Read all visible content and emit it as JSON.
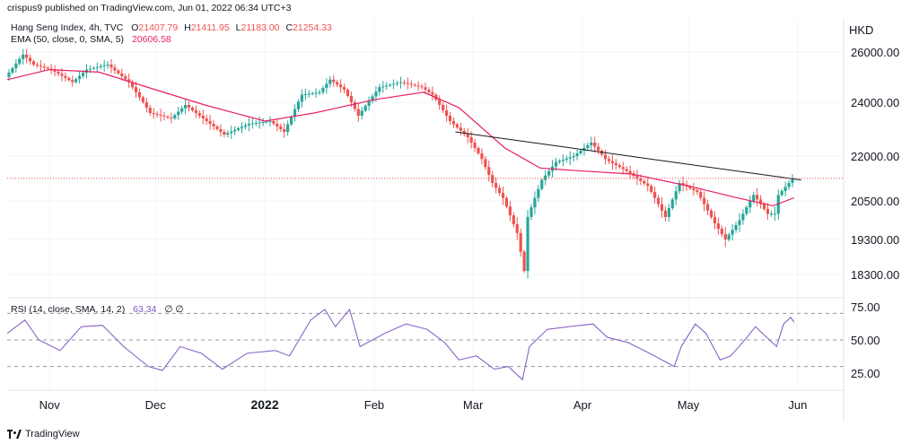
{
  "header": {
    "published_by": "crispus9 published on TradingView.com, Jun 01, 2022 06:34 UTC+3",
    "symbol": "Hang Seng Index, 4h, TVC",
    "ohlc": [
      {
        "key": "O",
        "value": "21407.79"
      },
      {
        "key": "H",
        "value": "21411.95"
      },
      {
        "key": "L",
        "value": "21183.00"
      },
      {
        "key": "C",
        "value": "21254.33"
      }
    ],
    "ema_label": "EMA (50, close, 0, SMA, 5)",
    "ema_value": "20606.58",
    "rsi_label": "RSI (14, close, SMA, 14, 2)",
    "rsi_value": "63.34",
    "rsi_extra": "∅  ∅"
  },
  "currency": "HKD",
  "footer": {
    "brand": "TradingView"
  },
  "colors": {
    "up": "#26a69a",
    "down": "#ef5350",
    "ema": "#e91e63",
    "trendline": "#131722",
    "rsi": "#7e57c2",
    "grid": "#d6dae3",
    "last_price": "#ef5350"
  },
  "chart_data": [
    {
      "type": "candlestick",
      "title": "Hang Seng Index, 4h, TVC",
      "ylabel": "HKD",
      "y_ticks": [
        "26000.00",
        "24000.00",
        "22000.00",
        "20500.00",
        "19300.00",
        "18300.00"
      ],
      "x_ticks": [
        {
          "date": "2021-11-01",
          "label": "Nov"
        },
        {
          "date": "2021-12-01",
          "label": "Dec"
        },
        {
          "date": "2022-01-01",
          "label": "2022"
        },
        {
          "date": "2022-02-01",
          "label": "Feb"
        },
        {
          "date": "2022-03-01",
          "label": "Mar"
        },
        {
          "date": "2022-04-01",
          "label": "Apr"
        },
        {
          "date": "2022-05-01",
          "label": "May"
        },
        {
          "date": "2022-06-01",
          "label": "Jun"
        }
      ],
      "x_range": [
        "2021-10-20",
        "2022-06-14"
      ],
      "last_price": 21254.33,
      "price_series": [
        {
          "date": "2021-10-20",
          "value": 25000
        },
        {
          "date": "2021-10-25",
          "value": 25900
        },
        {
          "date": "2021-10-28",
          "value": 25500
        },
        {
          "date": "2021-11-02",
          "value": 25300
        },
        {
          "date": "2021-11-08",
          "value": 24800
        },
        {
          "date": "2021-11-12",
          "value": 25300
        },
        {
          "date": "2021-11-18",
          "value": 25500
        },
        {
          "date": "2021-11-24",
          "value": 24800
        },
        {
          "date": "2021-11-30",
          "value": 23600
        },
        {
          "date": "2021-12-06",
          "value": 23400
        },
        {
          "date": "2021-12-10",
          "value": 23900
        },
        {
          "date": "2021-12-16",
          "value": 23300
        },
        {
          "date": "2021-12-21",
          "value": 22800
        },
        {
          "date": "2021-12-28",
          "value": 23200
        },
        {
          "date": "2022-01-03",
          "value": 23300
        },
        {
          "date": "2022-01-07",
          "value": 22900
        },
        {
          "date": "2022-01-12",
          "value": 24300
        },
        {
          "date": "2022-01-17",
          "value": 24400
        },
        {
          "date": "2022-01-20",
          "value": 24900
        },
        {
          "date": "2022-01-24",
          "value": 24500
        },
        {
          "date": "2022-01-28",
          "value": 23500
        },
        {
          "date": "2022-02-03",
          "value": 24600
        },
        {
          "date": "2022-02-09",
          "value": 24800
        },
        {
          "date": "2022-02-15",
          "value": 24600
        },
        {
          "date": "2022-02-18",
          "value": 24300
        },
        {
          "date": "2022-02-23",
          "value": 23300
        },
        {
          "date": "2022-02-28",
          "value": 22700
        },
        {
          "date": "2022-03-04",
          "value": 21900
        },
        {
          "date": "2022-03-07",
          "value": 21100
        },
        {
          "date": "2022-03-10",
          "value": 20600
        },
        {
          "date": "2022-03-14",
          "value": 19500
        },
        {
          "date": "2022-03-16",
          "value": 18400
        },
        {
          "date": "2022-03-17",
          "value": 20000
        },
        {
          "date": "2022-03-21",
          "value": 21200
        },
        {
          "date": "2022-03-25",
          "value": 21800
        },
        {
          "date": "2022-03-30",
          "value": 22000
        },
        {
          "date": "2022-04-04",
          "value": 22500
        },
        {
          "date": "2022-04-08",
          "value": 21900
        },
        {
          "date": "2022-04-14",
          "value": 21500
        },
        {
          "date": "2022-04-20",
          "value": 21000
        },
        {
          "date": "2022-04-25",
          "value": 20000
        },
        {
          "date": "2022-04-29",
          "value": 21100
        },
        {
          "date": "2022-05-04",
          "value": 20800
        },
        {
          "date": "2022-05-09",
          "value": 19800
        },
        {
          "date": "2022-05-12",
          "value": 19300
        },
        {
          "date": "2022-05-16",
          "value": 19900
        },
        {
          "date": "2022-05-20",
          "value": 20700
        },
        {
          "date": "2022-05-24",
          "value": 20100
        },
        {
          "date": "2022-05-26",
          "value": 20100
        },
        {
          "date": "2022-05-27",
          "value": 20700
        },
        {
          "date": "2022-05-30",
          "value": 21100
        },
        {
          "date": "2022-05-31",
          "value": 21254
        }
      ],
      "ema_series": [
        {
          "date": "2021-10-20",
          "value": 24900
        },
        {
          "date": "2021-11-01",
          "value": 25300
        },
        {
          "date": "2021-11-15",
          "value": 25200
        },
        {
          "date": "2021-12-01",
          "value": 24500
        },
        {
          "date": "2021-12-15",
          "value": 23900
        },
        {
          "date": "2022-01-01",
          "value": 23300
        },
        {
          "date": "2022-01-15",
          "value": 23600
        },
        {
          "date": "2022-02-01",
          "value": 24100
        },
        {
          "date": "2022-02-15",
          "value": 24400
        },
        {
          "date": "2022-02-25",
          "value": 23800
        },
        {
          "date": "2022-03-10",
          "value": 22300
        },
        {
          "date": "2022-03-20",
          "value": 21600
        },
        {
          "date": "2022-04-01",
          "value": 21500
        },
        {
          "date": "2022-04-15",
          "value": 21400
        },
        {
          "date": "2022-05-01",
          "value": 21000
        },
        {
          "date": "2022-05-15",
          "value": 20600
        },
        {
          "date": "2022-05-25",
          "value": 20350
        },
        {
          "date": "2022-05-31",
          "value": 20606
        }
      ],
      "trendline": [
        {
          "date": "2022-02-24",
          "value": 22900
        },
        {
          "date": "2022-06-02",
          "value": 21200
        }
      ]
    },
    {
      "type": "line",
      "title": "RSI (14, close, SMA, 14, 2)",
      "y_ticks": [
        "75.00",
        "50.00",
        "25.00"
      ],
      "levels": [
        70,
        50,
        30
      ],
      "ylim": [
        15,
        80
      ],
      "series": [
        {
          "date": "2021-10-20",
          "value": 55
        },
        {
          "date": "2021-10-25",
          "value": 65
        },
        {
          "date": "2021-10-29",
          "value": 50
        },
        {
          "date": "2021-11-04",
          "value": 42
        },
        {
          "date": "2021-11-10",
          "value": 60
        },
        {
          "date": "2021-11-16",
          "value": 61
        },
        {
          "date": "2021-11-22",
          "value": 45
        },
        {
          "date": "2021-11-29",
          "value": 30
        },
        {
          "date": "2021-12-03",
          "value": 27
        },
        {
          "date": "2021-12-08",
          "value": 45
        },
        {
          "date": "2021-12-14",
          "value": 40
        },
        {
          "date": "2021-12-20",
          "value": 28
        },
        {
          "date": "2021-12-27",
          "value": 40
        },
        {
          "date": "2022-01-04",
          "value": 42
        },
        {
          "date": "2022-01-08",
          "value": 38
        },
        {
          "date": "2022-01-14",
          "value": 65
        },
        {
          "date": "2022-01-18",
          "value": 73
        },
        {
          "date": "2022-01-21",
          "value": 60
        },
        {
          "date": "2022-01-25",
          "value": 73
        },
        {
          "date": "2022-01-28",
          "value": 45
        },
        {
          "date": "2022-02-04",
          "value": 55
        },
        {
          "date": "2022-02-10",
          "value": 62
        },
        {
          "date": "2022-02-16",
          "value": 58
        },
        {
          "date": "2022-02-21",
          "value": 48
        },
        {
          "date": "2022-02-25",
          "value": 35
        },
        {
          "date": "2022-03-02",
          "value": 38
        },
        {
          "date": "2022-03-07",
          "value": 28
        },
        {
          "date": "2022-03-11",
          "value": 30
        },
        {
          "date": "2022-03-15",
          "value": 20
        },
        {
          "date": "2022-03-17",
          "value": 45
        },
        {
          "date": "2022-03-22",
          "value": 58
        },
        {
          "date": "2022-03-28",
          "value": 60
        },
        {
          "date": "2022-04-04",
          "value": 62
        },
        {
          "date": "2022-04-08",
          "value": 52
        },
        {
          "date": "2022-04-14",
          "value": 48
        },
        {
          "date": "2022-04-20",
          "value": 40
        },
        {
          "date": "2022-04-27",
          "value": 30
        },
        {
          "date": "2022-04-29",
          "value": 45
        },
        {
          "date": "2022-05-03",
          "value": 62
        },
        {
          "date": "2022-05-06",
          "value": 55
        },
        {
          "date": "2022-05-10",
          "value": 35
        },
        {
          "date": "2022-05-13",
          "value": 38
        },
        {
          "date": "2022-05-17",
          "value": 50
        },
        {
          "date": "2022-05-20",
          "value": 60
        },
        {
          "date": "2022-05-24",
          "value": 50
        },
        {
          "date": "2022-05-26",
          "value": 45
        },
        {
          "date": "2022-05-28",
          "value": 62
        },
        {
          "date": "2022-05-30",
          "value": 67
        },
        {
          "date": "2022-05-31",
          "value": 63.34
        }
      ]
    }
  ]
}
